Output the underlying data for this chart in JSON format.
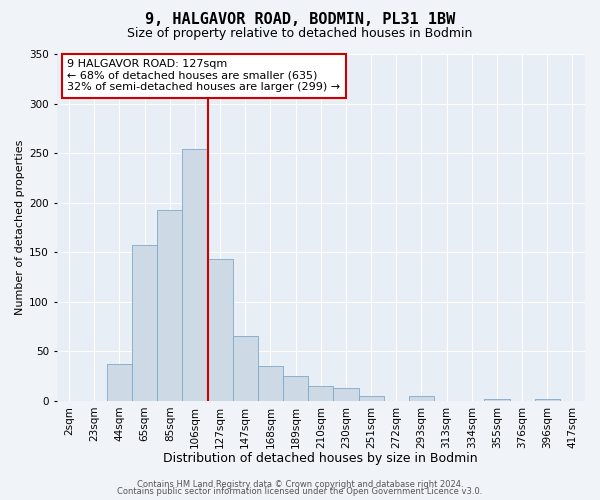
{
  "title": "9, HALGAVOR ROAD, BODMIN, PL31 1BW",
  "subtitle": "Size of property relative to detached houses in Bodmin",
  "xlabel": "Distribution of detached houses by size in Bodmin",
  "ylabel": "Number of detached properties",
  "bar_labels": [
    "2sqm",
    "23sqm",
    "44sqm",
    "65sqm",
    "85sqm",
    "106sqm",
    "127sqm",
    "147sqm",
    "168sqm",
    "189sqm",
    "210sqm",
    "230sqm",
    "251sqm",
    "272sqm",
    "293sqm",
    "313sqm",
    "334sqm",
    "355sqm",
    "376sqm",
    "396sqm",
    "417sqm"
  ],
  "bar_values": [
    0,
    0,
    37,
    157,
    193,
    254,
    143,
    65,
    35,
    25,
    15,
    13,
    5,
    0,
    5,
    0,
    0,
    2,
    0,
    2,
    0
  ],
  "bar_color": "#cdd9e5",
  "bar_edgecolor": "#7fa8c9",
  "ylim": [
    0,
    350
  ],
  "yticks": [
    0,
    50,
    100,
    150,
    200,
    250,
    300,
    350
  ],
  "vline_x_index": 6,
  "vline_color": "#cc0000",
  "annotation_title": "9 HALGAVOR ROAD: 127sqm",
  "annotation_line1": "← 68% of detached houses are smaller (635)",
  "annotation_line2": "32% of semi-detached houses are larger (299) →",
  "annotation_box_facecolor": "#ffffff",
  "annotation_box_edgecolor": "#cc0000",
  "footer_line1": "Contains HM Land Registry data © Crown copyright and database right 2024.",
  "footer_line2": "Contains public sector information licensed under the Open Government Licence v3.0.",
  "fig_facecolor": "#f0f4f8",
  "plot_facecolor": "#e8eef5",
  "title_fontsize": 11,
  "subtitle_fontsize": 9,
  "xlabel_fontsize": 9,
  "ylabel_fontsize": 8,
  "tick_fontsize": 7.5,
  "annotation_fontsize": 8,
  "footer_fontsize": 6
}
